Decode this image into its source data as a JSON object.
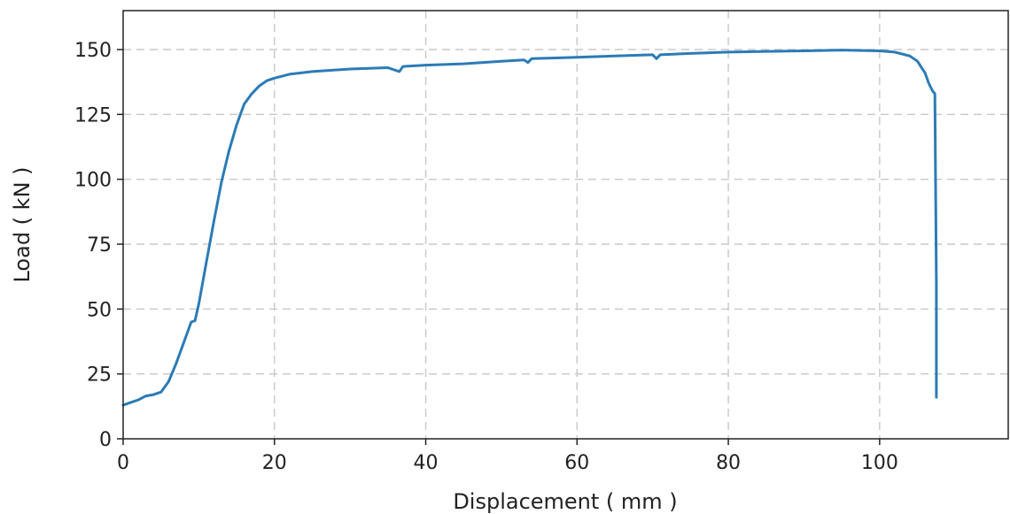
{
  "chart_data": {
    "type": "line",
    "title": "",
    "xlabel": "Displacement ( mm )",
    "ylabel": "Load ( kN )",
    "xlim": [
      0,
      117
    ],
    "ylim": [
      0,
      165
    ],
    "xticks": [
      0,
      20,
      40,
      60,
      80,
      100
    ],
    "yticks": [
      0,
      25,
      50,
      75,
      100,
      125,
      150
    ],
    "xtick_labels": [
      "0",
      "20",
      "40",
      "60",
      "80",
      "100"
    ],
    "ytick_labels": [
      "0",
      "25",
      "50",
      "75",
      "100",
      "125",
      "150"
    ],
    "grid": true,
    "line_color": "#2c7bb6",
    "series": [
      {
        "x": [
          0,
          1,
          2,
          3,
          4,
          5,
          6,
          7,
          8,
          9,
          9.5,
          10,
          11,
          12,
          13,
          14,
          15,
          16,
          17,
          18,
          19,
          20,
          22,
          25,
          30,
          35,
          36.5,
          37,
          40,
          45,
          50,
          53,
          53.5,
          54,
          60,
          65,
          70,
          70.5,
          71,
          75,
          80,
          85,
          90,
          95,
          100,
          102,
          104,
          105,
          106,
          106.5,
          107,
          107.3,
          107.5,
          107.5
        ],
        "y": [
          13,
          14,
          15,
          16.5,
          17,
          18,
          22,
          29,
          37,
          45,
          45.5,
          52,
          68,
          84,
          99,
          111,
          121,
          129,
          133,
          136,
          138,
          139,
          140.5,
          141.5,
          142.5,
          143,
          141.5,
          143.5,
          144,
          144.5,
          145.5,
          146,
          145,
          146.5,
          147,
          147.5,
          148,
          146.5,
          148,
          148.5,
          149,
          149.3,
          149.5,
          149.8,
          149.5,
          149,
          147.5,
          145.5,
          141,
          137,
          134,
          133,
          60,
          16
        ]
      }
    ]
  }
}
